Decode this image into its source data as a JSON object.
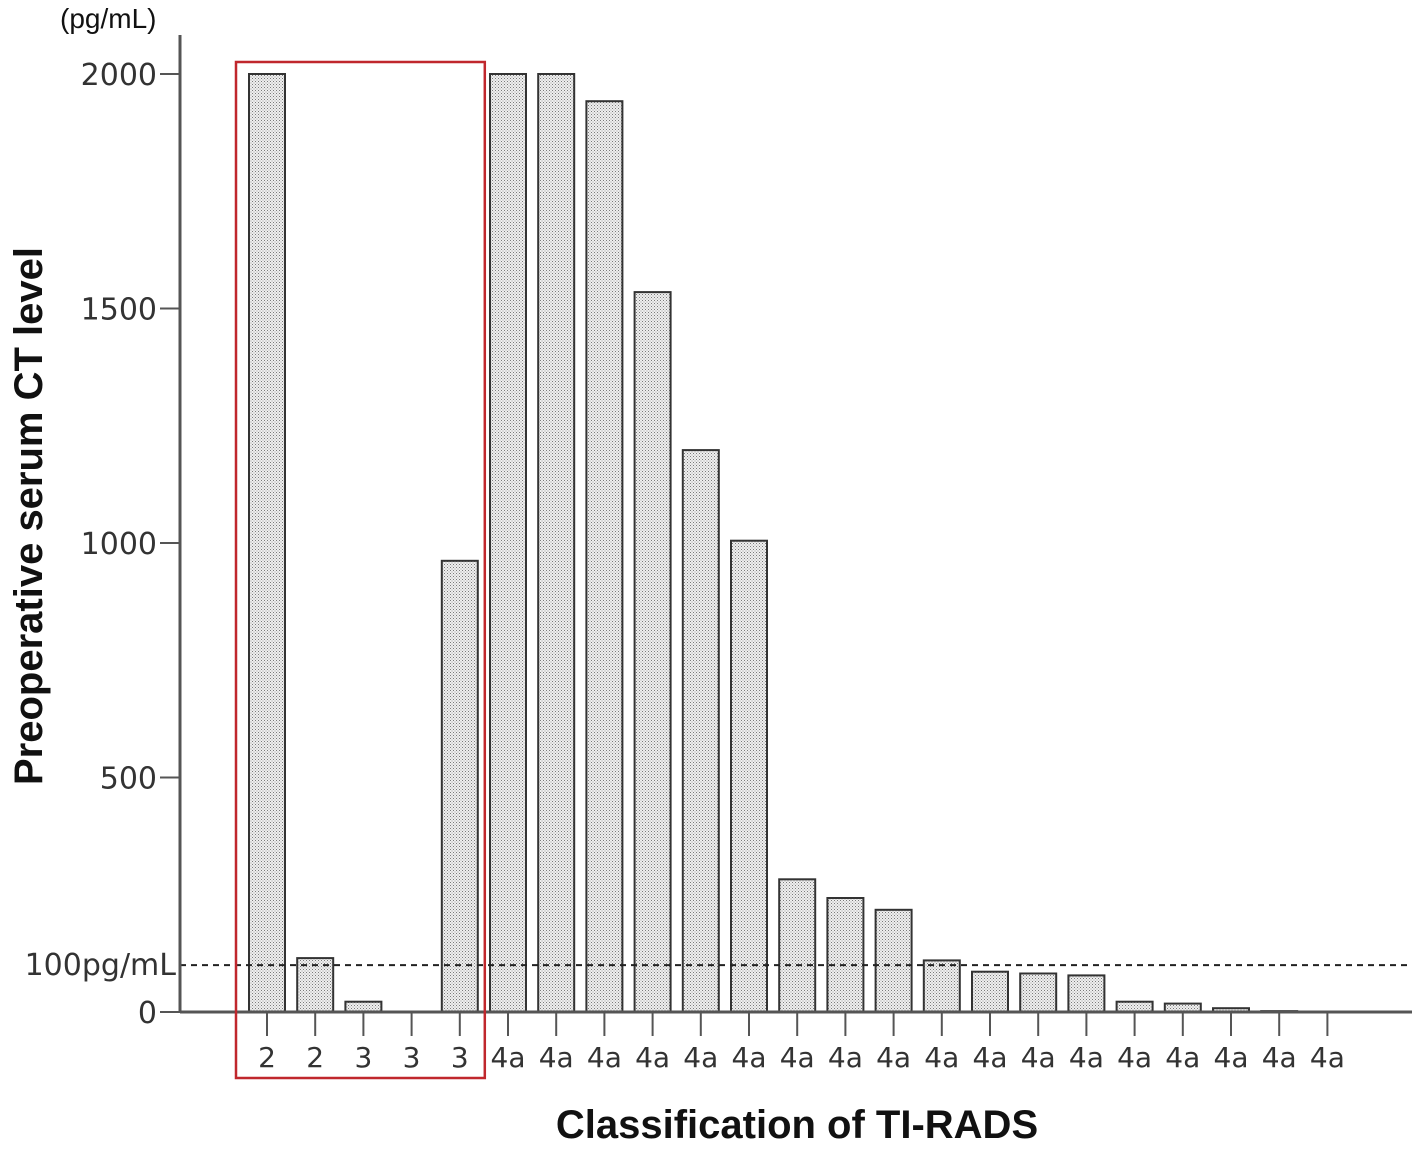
{
  "chart_data": {
    "type": "bar",
    "categories": [
      "2",
      "2",
      "3",
      "3",
      "3",
      "4a",
      "4a",
      "4a",
      "4a",
      "4a",
      "4a",
      "4a",
      "4a",
      "4a",
      "4a",
      "4a",
      "4a",
      "4a",
      "4a",
      "4a",
      "4a",
      "4a",
      "4a"
    ],
    "values": [
      2000,
      115,
      22,
      0,
      962,
      2000,
      2000,
      1942,
      1535,
      1198,
      1005,
      283,
      243,
      218,
      110,
      86,
      82,
      78,
      22,
      18,
      8,
      2,
      1
    ],
    "title": "",
    "xlabel": "Classification of TI-RADS",
    "ylabel": "Preoperative serum CT level",
    "y_unit": "(pg/mL)",
    "ylim": [
      0,
      2100
    ],
    "yticks": [
      "0",
      "500",
      "1000",
      "1500",
      "2000"
    ],
    "reference_line": {
      "value": 100,
      "label": "100pg/mL",
      "style": "dashed"
    },
    "highlight_box": {
      "from_category_index": 0,
      "to_category_index": 4,
      "color": "#c0272d"
    },
    "bar_pattern": "dotted",
    "grid": false
  }
}
